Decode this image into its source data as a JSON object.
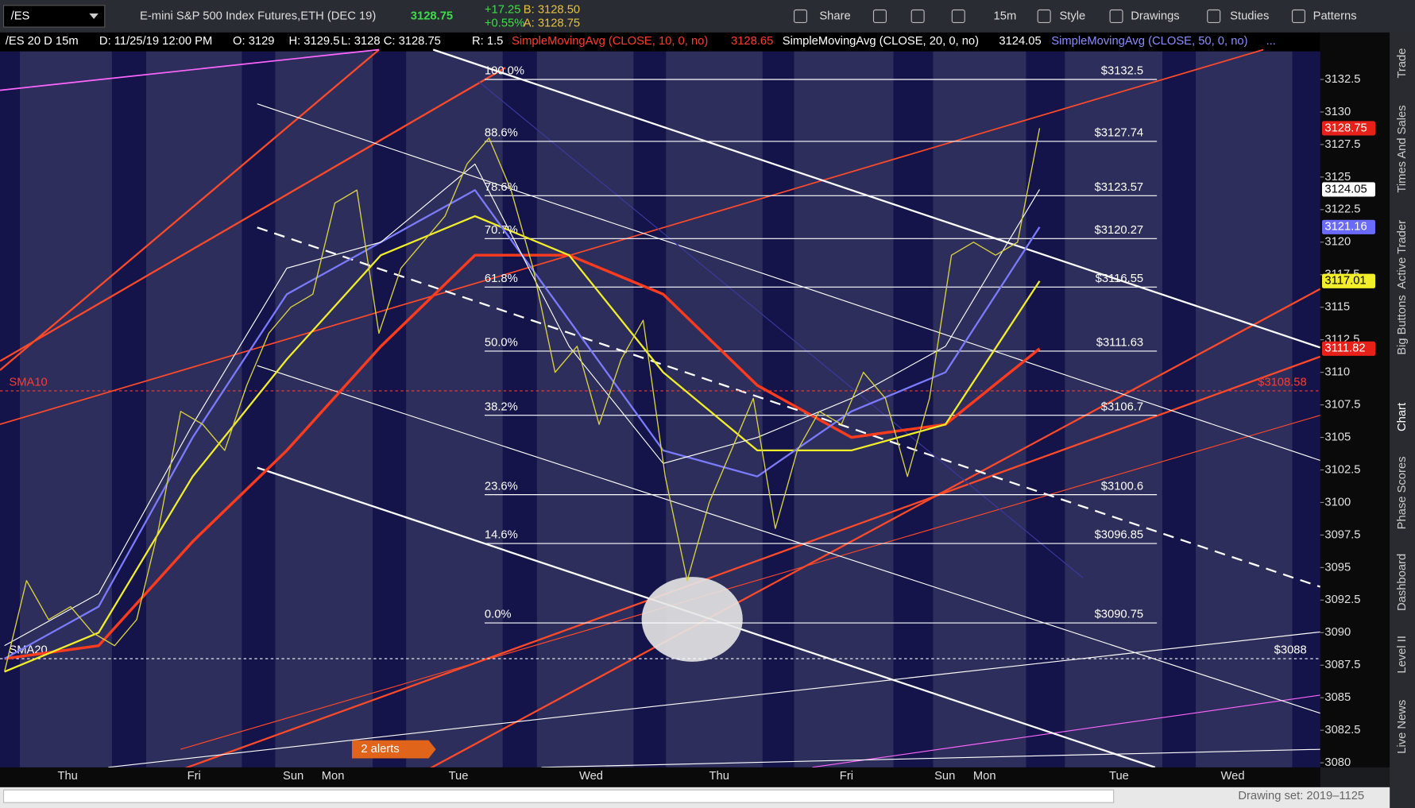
{
  "toolbar": {
    "symbol": "/ES",
    "description": "E-mini S&P 500 Index Futures,ETH (DEC 19)",
    "last": "3128.75",
    "change": "+17.25",
    "change_pct": "+0.55%",
    "bid": "B: 3128.50",
    "ask": "A: 3128.75",
    "buttons": [
      "Share",
      "15m",
      "Style",
      "Drawings",
      "Studies",
      "Patterns"
    ]
  },
  "info_bar": {
    "items": [
      "/ES 20 D 15m",
      "D: 11/25/19 12:00 PM",
      "O: 3129",
      "H: 3129.5",
      "L: 3128",
      "C: 3128.75",
      "R: 1.5"
    ],
    "studies": [
      {
        "label": "SimpleMovingAvg (CLOSE, 10, 0, no)",
        "value": "3128.65",
        "color": "#ff3b30"
      },
      {
        "label": "SimpleMovingAvg (CLOSE, 20, 0, no)",
        "value": "3124.05",
        "color": "#ffffff"
      },
      {
        "label": "SimpleMovingAvg (CLOSE, 50, 0, no)",
        "value": "...",
        "color": "#8c8cff"
      }
    ]
  },
  "chart": {
    "ylim": [
      3079.65,
      3134.65
    ],
    "yticks": [
      3132.5,
      3130,
      3127.5,
      3125,
      3122.5,
      3120,
      3117.5,
      3115,
      3112.5,
      3110,
      3107.5,
      3105,
      3102.5,
      3100,
      3097.5,
      3095,
      3092.5,
      3090,
      3087.5,
      3085,
      3082.5,
      3080
    ],
    "dates": [
      "Thu",
      "Fri",
      "Sun",
      "Mon",
      "Tue",
      "Wed",
      "Thu",
      "Fri",
      "Sun",
      "Mon",
      "Tue",
      "Wed"
    ],
    "fib_levels": [
      {
        "pct": "100.0%",
        "price": {
          "value": 3132.5,
          "label": "$3132.5"
        }
      },
      {
        "pct": "88.6%",
        "price": {
          "value": 3127.74,
          "label": "$3127.74"
        }
      },
      {
        "pct": "78.6%",
        "price": {
          "value": 3123.57,
          "label": "$3123.57"
        }
      },
      {
        "pct": "70.7%",
        "price": {
          "value": 3120.27,
          "label": "$3120.27"
        }
      },
      {
        "pct": "61.8%",
        "price": {
          "value": 3116.55,
          "label": "$3116.55"
        }
      },
      {
        "pct": "50.0%",
        "price": {
          "value": 3111.63,
          "label": "$3111.63"
        }
      },
      {
        "pct": "38.2%",
        "price": {
          "value": 3106.7,
          "label": "$3106.7"
        }
      },
      {
        "pct": "23.6%",
        "price": {
          "value": 3100.6,
          "label": "$3100.6"
        }
      },
      {
        "pct": "14.6%",
        "price": {
          "value": 3096.85,
          "label": "$3096.85"
        }
      },
      {
        "pct": "0.0%",
        "price": {
          "value": 3090.75,
          "label": "$3090.75"
        }
      }
    ],
    "sma_lines": [
      {
        "name": "SMA10",
        "price": {
          "value": 3108.58,
          "label": "$3108.58"
        },
        "color": "#ff3b30"
      },
      {
        "name": "SMA20",
        "price": {
          "value": 3088,
          "label": "$3088"
        },
        "color": "#ffffff"
      }
    ],
    "price": {
      "color": "#d8d040",
      "values": [
        3087,
        3094,
        3091,
        3092,
        3090,
        3089,
        3091,
        3098,
        3107,
        3106,
        3104,
        3109,
        3113,
        3115,
        3116,
        3123,
        3124,
        3113,
        3118,
        3120,
        3122,
        3126,
        3128,
        3124,
        3118,
        3110,
        3112,
        3106,
        3111,
        3114,
        3102,
        3094,
        3100,
        3104,
        3108,
        3098,
        3104,
        3107,
        3106,
        3110,
        3108,
        3102,
        3108,
        3119,
        3120,
        3119,
        3120,
        3128.75
      ]
    },
    "averages": [
      {
        "color": "#ff3b1e",
        "width": 3,
        "values": [
          3088,
          3089,
          3097,
          3104,
          3112,
          3119,
          3119,
          3116,
          3109,
          3105,
          3106,
          3111.82
        ]
      },
      {
        "color": "#f2ee2a",
        "width": 2,
        "values": [
          3087,
          3090,
          3102,
          3111,
          3119,
          3122,
          3119,
          3110,
          3104,
          3104,
          3106,
          3117.01
        ]
      },
      {
        "color": "#7b7bff",
        "width": 2,
        "values": [
          3088,
          3092,
          3105,
          3116,
          3120,
          3124,
          3114,
          3104,
          3102,
          3107,
          3110,
          3121.16
        ]
      },
      {
        "color": "#ffffff",
        "width": 1,
        "values": [
          3089,
          3093,
          3106,
          3118,
          3120,
          3126,
          3112,
          3103,
          3105,
          3108,
          3112,
          3124.05
        ]
      }
    ],
    "badges": [
      {
        "value": 3128.75,
        "color": "#e8201a",
        "text_color": "#ffffff"
      },
      {
        "value": 3124.05,
        "color": "#ffffff",
        "text_color": "#000000"
      },
      {
        "value": 3121.16,
        "color": "#6a6aff",
        "text_color": "#ffffff"
      },
      {
        "value": 3117.01,
        "color": "#f2ee2a",
        "text_color": "#000000"
      },
      {
        "value": 3111.82,
        "color": "#e8201a",
        "text_color": "#ffffff"
      }
    ],
    "alerts": "2 alerts"
  },
  "side_tabs": [
    "Trade",
    "Times And Sales",
    "Active Trader",
    "Big Buttons",
    "Chart",
    "Phase Scores",
    "Dashboard",
    "Level II",
    "Live News"
  ],
  "footer": {
    "drawing_set": "Drawing set: 2019–1125"
  }
}
